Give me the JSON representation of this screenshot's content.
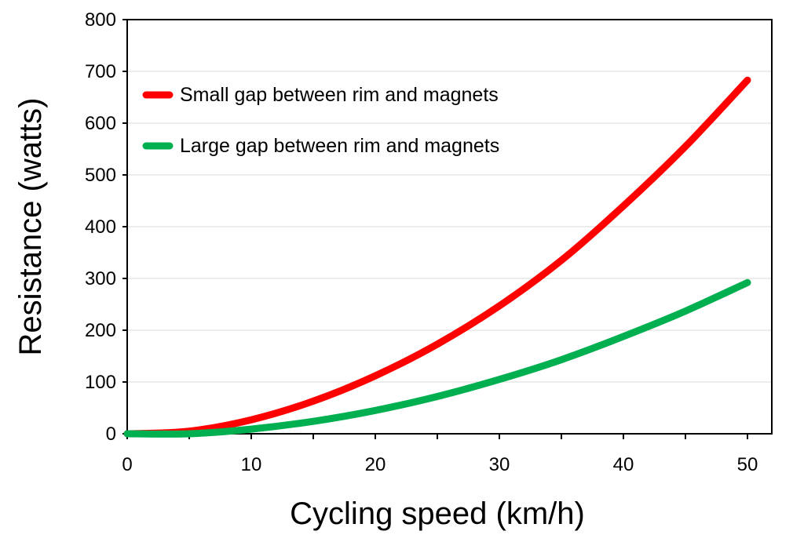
{
  "chart_data": {
    "type": "line",
    "title": "",
    "xlabel": "Cycling speed (km/h)",
    "ylabel": "Resistance (watts)",
    "xlim": [
      0,
      50
    ],
    "ylim": [
      0,
      800
    ],
    "xticks": [
      0,
      10,
      20,
      30,
      40,
      50
    ],
    "yticks": [
      0,
      100,
      200,
      300,
      400,
      500,
      600,
      700,
      800
    ],
    "grid": "horizontal",
    "legend_position": "top-left",
    "x": [
      0,
      5,
      10,
      15,
      20,
      25,
      30,
      35,
      40,
      45,
      50
    ],
    "series": [
      {
        "name": "Small gap between rim and magnets",
        "color": "#ff0000",
        "values": [
          0,
          5,
          27,
          63,
          112,
          173,
          247,
          335,
          440,
          555,
          683
        ]
      },
      {
        "name": "Large gap between rim and magnets",
        "color": "#00b050",
        "values": [
          0,
          0,
          9,
          24,
          45,
          72,
          105,
          143,
          188,
          237,
          292
        ]
      }
    ]
  }
}
